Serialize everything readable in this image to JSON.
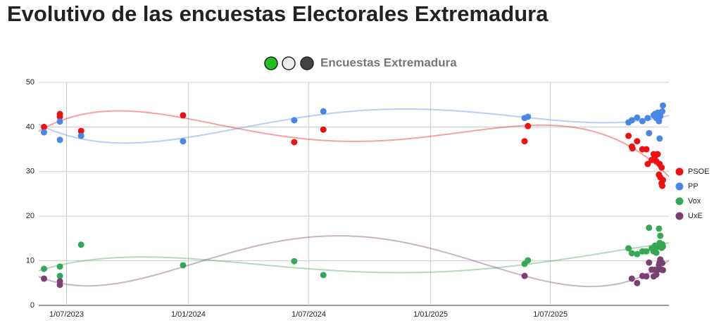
{
  "page_title": "Evolutivo de las encuestas Electorales Extremadura",
  "chart_data": {
    "type": "scatter",
    "title": "Encuestas Extremadura",
    "xlim": [
      "20/05/2023",
      "27/12/2025"
    ],
    "xticks": [
      "1/07/2023",
      "1/01/2024",
      "1/07/2024",
      "1/01/2025",
      "1/07/2025"
    ],
    "ylim": [
      0,
      50
    ],
    "yticks": [
      0,
      10,
      20,
      30,
      40,
      50
    ],
    "grid": true,
    "legend": "right",
    "trendline": true,
    "series": [
      {
        "name": "PSOE",
        "color": "#ee1111",
        "x": [
          "28/05/2023",
          "21/06/2023",
          "21/06/2023",
          "23/07/2023",
          "24/12/2023",
          "9/06/2024",
          "23/07/2024",
          "23/05/2025",
          "28/05/2025",
          "27/10/2025",
          "1/11/2025",
          "2/11/2025",
          "9/11/2025",
          "17/11/2025",
          "23/11/2025",
          "25/11/2025",
          "1/12/2025",
          "4/12/2025",
          "6/12/2025",
          "8/12/2025",
          "10/12/2025",
          "12/12/2025",
          "13/12/2025",
          "14/12/2025",
          "16/12/2025",
          "16/12/2025",
          "17/12/2025",
          "18/12/2025"
        ],
        "values": [
          40,
          42.9,
          42.3,
          39.1,
          42.6,
          36.6,
          39.4,
          36.8,
          40.2,
          38,
          35.6,
          35.2,
          36.8,
          35,
          35,
          31.7,
          32.6,
          33.9,
          33.4,
          32.3,
          33.9,
          29.3,
          31.7,
          28.7,
          27.4,
          30.9,
          26.8,
          28.1
        ]
      },
      {
        "name": "PP",
        "color": "#4a86e8",
        "x": [
          "28/05/2023",
          "21/06/2023",
          "21/06/2023",
          "23/07/2023",
          "24/12/2023",
          "9/06/2024",
          "23/07/2024",
          "23/05/2025",
          "28/05/2025",
          "27/10/2025",
          "1/11/2025",
          "9/11/2025",
          "17/11/2025",
          "25/11/2025",
          "27/11/2025",
          "4/12/2025",
          "6/12/2025",
          "8/12/2025",
          "10/12/2025",
          "12/12/2025",
          "13/12/2025",
          "14/12/2025",
          "17/12/2025",
          "18/12/2025"
        ],
        "values": [
          38.8,
          41.2,
          37.1,
          38,
          36.8,
          41.5,
          43.5,
          42,
          42.3,
          41,
          41.5,
          42.1,
          41.3,
          42,
          38.6,
          42.6,
          42.9,
          42,
          43.2,
          41.3,
          37.4,
          42.4,
          43.5,
          44.8
        ]
      },
      {
        "name": "Vox",
        "color": "#34a853",
        "x": [
          "28/05/2023",
          "21/06/2023",
          "21/06/2023",
          "23/07/2023",
          "24/12/2023",
          "9/06/2024",
          "23/07/2024",
          "23/05/2025",
          "28/05/2025",
          "27/10/2025",
          "1/11/2025",
          "9/11/2025",
          "17/11/2025",
          "23/11/2025",
          "27/11/2025",
          "1/12/2025",
          "4/12/2025",
          "6/12/2025",
          "8/12/2025",
          "10/12/2025",
          "12/12/2025",
          "13/12/2025",
          "14/12/2025",
          "16/12/2025",
          "17/12/2025",
          "18/12/2025"
        ],
        "values": [
          8.2,
          8.7,
          6.6,
          13.6,
          9,
          9.9,
          6.8,
          9.3,
          10.1,
          12.8,
          11.7,
          11.5,
          12.1,
          12.1,
          17.4,
          12.8,
          12.1,
          13.4,
          11.8,
          13.1,
          17.2,
          14,
          15.6,
          12.9,
          13.7,
          13.2
        ]
      },
      {
        "name": "UxE",
        "color": "#7b3f73",
        "x": [
          "28/05/2023",
          "21/06/2023",
          "21/06/2023",
          "23/05/2025",
          "1/11/2025",
          "9/11/2025",
          "17/11/2025",
          "23/11/2025",
          "27/11/2025",
          "1/12/2025",
          "4/12/2025",
          "6/12/2025",
          "8/12/2025",
          "10/12/2025",
          "12/12/2025",
          "13/12/2025",
          "14/12/2025",
          "16/12/2025",
          "17/12/2025",
          "18/12/2025"
        ],
        "values": [
          6,
          5.4,
          4.6,
          6.6,
          6,
          5,
          6.6,
          6.5,
          9.6,
          8,
          6.5,
          8,
          6.9,
          8,
          9.1,
          9.6,
          10.3,
          8,
          9.5,
          7.9
        ]
      }
    ]
  }
}
